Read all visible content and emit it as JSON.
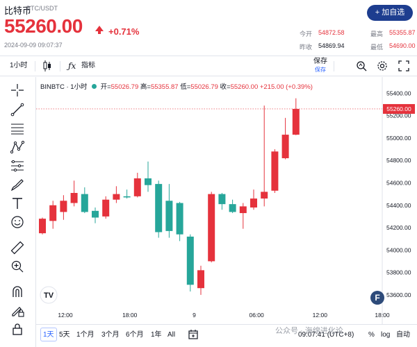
{
  "header": {
    "coin_name": "比特币",
    "pair": "BTC/USDT",
    "price": "55260.00",
    "change": "+0.71%",
    "timestamp": "2024-09-09 09:07:37",
    "add_button": "+ 加自选",
    "stats": [
      {
        "label": "今开",
        "value": "54872.58"
      },
      {
        "label": "最高",
        "value": "55355.87"
      },
      {
        "label": "昨收",
        "value": "54869.94"
      },
      {
        "label": "最低",
        "value": "54690.00"
      }
    ],
    "colors": {
      "up": "#e5323c",
      "down": "#26a69a",
      "accent": "#1d3d8f"
    }
  },
  "toolbar": {
    "interval": "1小时",
    "candle_icon": "candlestick-icon",
    "indicators_icon": "fx-icon",
    "indicators": "指标",
    "save": "保存",
    "save_sub": "保存",
    "icons": [
      "search-icon",
      "gear-icon",
      "fullscreen-icon"
    ]
  },
  "left_tools": [
    "crosshair-icon",
    "trendline-icon",
    "horizontal-lines-icon",
    "pattern-icon",
    "fib-icon",
    "brush-icon",
    "text-icon",
    "emoji-icon",
    "ruler-icon",
    "zoom-in-icon",
    "magnet-icon",
    "pencil-lock-icon",
    "lock-icon"
  ],
  "legend": {
    "symbol": "BINBTC · 1小时",
    "open_label": "开=",
    "open": "55026.79",
    "high_label": "高=",
    "high": "55355.87",
    "low_label": "低=",
    "low": "55026.79",
    "close_label": "收=",
    "close": "55260.00",
    "change": "+215.00 (+0.39%)"
  },
  "bottom": {
    "ranges": [
      "1天",
      "5天",
      "1个月",
      "3个月",
      "6个月",
      "1年",
      "All"
    ],
    "time": "09:07:41 (UTC+8)",
    "percent": "%",
    "log": "log",
    "auto": "自动"
  },
  "watermark": "公众号 · 海绵进化论",
  "chart_data": {
    "type": "candlestick",
    "symbol": "BINBTC",
    "interval": "1小时",
    "ylim": [
      53500,
      55520
    ],
    "y_ticks": [
      53600,
      53800,
      54000,
      54200,
      54400,
      54600,
      54800,
      55000,
      55200,
      55400
    ],
    "x_tick_labels": [
      {
        "label": "12:00",
        "index": 2.5
      },
      {
        "label": "18:00",
        "index": 8.6
      },
      {
        "label": "9",
        "index": 14.7
      },
      {
        "label": "06:00",
        "index": 20.6
      },
      {
        "label": "12:00",
        "index": 26.6
      },
      {
        "label": "18:00",
        "index": 32.5
      }
    ],
    "last_price": 55260.0,
    "last_price_label": "55260.00",
    "candles": [
      {
        "o": 54150,
        "h": 54290,
        "l": 54140,
        "c": 54280
      },
      {
        "o": 54260,
        "h": 54440,
        "l": 54190,
        "c": 54400
      },
      {
        "o": 54340,
        "h": 54490,
        "l": 54270,
        "c": 54440
      },
      {
        "o": 54420,
        "h": 54620,
        "l": 54390,
        "c": 54510
      },
      {
        "o": 54500,
        "h": 54560,
        "l": 54330,
        "c": 54340
      },
      {
        "o": 54350,
        "h": 54380,
        "l": 54240,
        "c": 54290
      },
      {
        "o": 54300,
        "h": 54480,
        "l": 54280,
        "c": 54450
      },
      {
        "o": 54450,
        "h": 54570,
        "l": 54420,
        "c": 54500
      },
      {
        "o": 54480,
        "h": 54540,
        "l": 54460,
        "c": 54470
      },
      {
        "o": 54480,
        "h": 54690,
        "l": 54470,
        "c": 54640
      },
      {
        "o": 54640,
        "h": 54790,
        "l": 54520,
        "c": 54580
      },
      {
        "o": 54590,
        "h": 54620,
        "l": 54110,
        "c": 54160
      },
      {
        "o": 54440,
        "h": 54590,
        "l": 54110,
        "c": 54170
      },
      {
        "o": 54420,
        "h": 54430,
        "l": 54080,
        "c": 54140
      },
      {
        "o": 54120,
        "h": 54140,
        "l": 53630,
        "c": 53690
      },
      {
        "o": 53660,
        "h": 53860,
        "l": 53600,
        "c": 53820
      },
      {
        "o": 53900,
        "h": 54520,
        "l": 53890,
        "c": 54500
      },
      {
        "o": 54500,
        "h": 54510,
        "l": 54360,
        "c": 54410
      },
      {
        "o": 54410,
        "h": 54450,
        "l": 54330,
        "c": 54340
      },
      {
        "o": 54330,
        "h": 54420,
        "l": 54190,
        "c": 54390
      },
      {
        "o": 54380,
        "h": 54540,
        "l": 54360,
        "c": 54460
      },
      {
        "o": 54460,
        "h": 55290,
        "l": 54390,
        "c": 54520
      },
      {
        "o": 54530,
        "h": 54900,
        "l": 54510,
        "c": 54880
      },
      {
        "o": 54820,
        "h": 55180,
        "l": 54810,
        "c": 55030
      },
      {
        "o": 55030,
        "h": 55355,
        "l": 55026,
        "c": 55260
      }
    ]
  }
}
